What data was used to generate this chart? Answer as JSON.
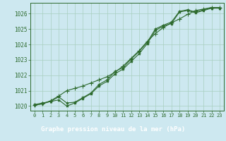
{
  "title": "Graphe pression niveau de la mer (hPa)",
  "bg_color": "#cde8f0",
  "plot_bg_color": "#cde8f0",
  "bottom_bar_color": "#2d6a2d",
  "grid_color": "#a8cfc0",
  "line_color": "#2d6a2d",
  "title_color": "#ffffff",
  "xlabel_color": "#2d6a2d",
  "xlim": [
    -0.5,
    23.5
  ],
  "ylim": [
    1019.7,
    1026.7
  ],
  "xtick_labels": [
    "0",
    "1",
    "2",
    "3",
    "4",
    "5",
    "6",
    "7",
    "8",
    "9",
    "10",
    "11",
    "12",
    "13",
    "14",
    "15",
    "16",
    "17",
    "18",
    "19",
    "20",
    "21",
    "22",
    "23"
  ],
  "yticks": [
    1020,
    1021,
    1022,
    1023,
    1024,
    1025,
    1026
  ],
  "series1_x": [
    0,
    1,
    2,
    3,
    4,
    5,
    6,
    7,
    8,
    9,
    10,
    11,
    12,
    13,
    14,
    15,
    16,
    17,
    18,
    19,
    20,
    21,
    22,
    23
  ],
  "series1_y": [
    1020.1,
    1020.2,
    1020.3,
    1020.4,
    1020.0,
    1020.2,
    1020.5,
    1020.8,
    1021.3,
    1021.6,
    1022.1,
    1022.4,
    1022.9,
    1023.4,
    1024.05,
    1024.9,
    1025.2,
    1025.35,
    1026.1,
    1026.2,
    1026.05,
    1026.2,
    1026.35,
    1026.35
  ],
  "series2_x": [
    0,
    1,
    2,
    3,
    4,
    5,
    6,
    7,
    8,
    9,
    10,
    11,
    12,
    13,
    14,
    15,
    16,
    17,
    18,
    19,
    20,
    21,
    22,
    23
  ],
  "series2_y": [
    1020.05,
    1020.15,
    1020.3,
    1020.6,
    1020.2,
    1020.25,
    1020.55,
    1020.85,
    1021.4,
    1021.7,
    1022.25,
    1022.5,
    1023.05,
    1023.55,
    1024.15,
    1025.0,
    1025.25,
    1025.45,
    1026.15,
    1026.25,
    1026.1,
    1026.25,
    1026.4,
    1026.4
  ],
  "series3_x": [
    0,
    1,
    2,
    3,
    4,
    5,
    6,
    7,
    8,
    9,
    10,
    11,
    12,
    13,
    14,
    15,
    16,
    17,
    18,
    19,
    20,
    21,
    22,
    23
  ],
  "series3_y": [
    1020.05,
    1020.15,
    1020.35,
    1020.65,
    1021.0,
    1021.15,
    1021.3,
    1021.5,
    1021.7,
    1021.9,
    1022.2,
    1022.6,
    1023.1,
    1023.6,
    1024.2,
    1024.7,
    1025.1,
    1025.4,
    1025.65,
    1025.95,
    1026.2,
    1026.3,
    1026.4,
    1026.4
  ]
}
